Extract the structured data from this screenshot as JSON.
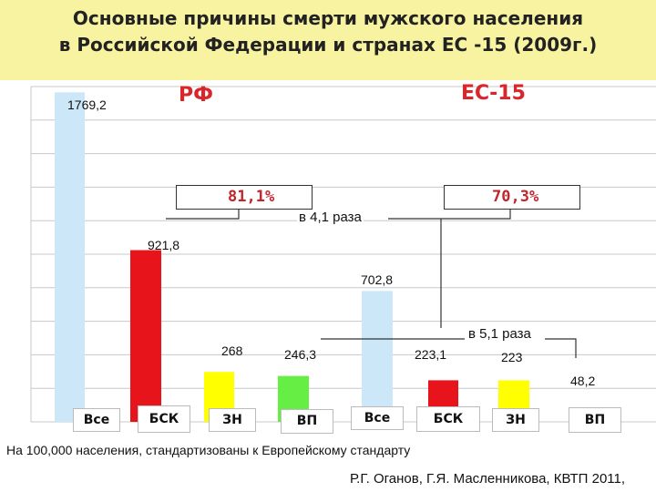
{
  "header": {
    "title_line1": "Основные причины смерти мужского населения",
    "title_line2": "в Российской Федерации и странах ЕС -15 (2009г.)"
  },
  "chart_data": {
    "type": "bar",
    "groups": [
      "РФ",
      "ЕС-15"
    ],
    "series": [
      {
        "group": "РФ",
        "categories": [
          "Все",
          "БСК",
          "ЗН",
          "ВП"
        ],
        "values": [
          1769.2,
          921.8,
          268,
          246.3
        ],
        "value_labels": [
          "1769,2",
          "921,8",
          "268",
          "246,3"
        ],
        "colors": [
          "#cce8f8",
          "#e8141c",
          "#ffff00",
          "#66ee44"
        ],
        "share_label": "81,1%"
      },
      {
        "group": "ЕС-15",
        "categories": [
          "Все",
          "БСК",
          "ЗН",
          "ВП"
        ],
        "values": [
          702.8,
          223.1,
          223,
          48.2
        ],
        "value_labels": [
          "702,8",
          "223,1",
          "223",
          "48,2"
        ],
        "colors": [
          "#cce8f8",
          "#e8141c",
          "#ffff00",
          "#66ee44"
        ],
        "share_label": "70,3%"
      }
    ],
    "annotations": [
      "в 4,1 раза",
      "в 5,1 раза"
    ],
    "ylim": [
      0,
      1800
    ],
    "grid": true,
    "xlabel": "",
    "ylabel": ""
  },
  "footer": {
    "note": "На 100,000 населения, стандартизованы к Европейскому стандарту",
    "source": "Р.Г. Оганов, Г.Я. Масленникова, КВТП 2011,"
  },
  "colors": {
    "title_background": "#f7f3a0",
    "group_label": "#d9262b",
    "share_label": "#c0272d",
    "grid": "#c8c8c8"
  }
}
